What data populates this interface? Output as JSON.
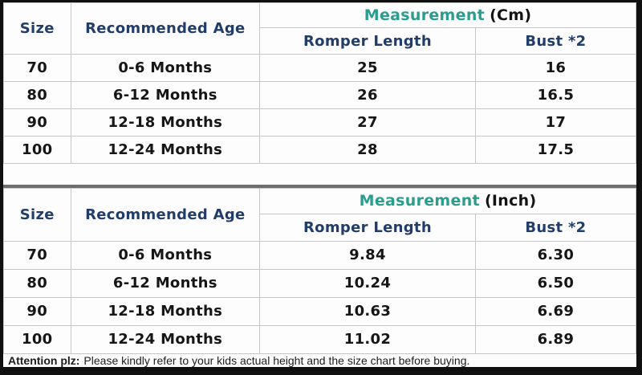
{
  "colors": {
    "header_blue": "#223d69",
    "measurement_teal": "#2a9d8f",
    "grid_gray": "#c6c6c6",
    "frame_black": "#101010"
  },
  "chart_data": [
    {
      "type": "table",
      "title": "Measurement (Cm)",
      "columns": [
        "Size",
        "Recommended Age",
        "Romper Length",
        "Bust *2"
      ],
      "header": {
        "size": "Size",
        "age": "Recommended Age",
        "measurement": "Measurement",
        "unit": "(Cm)",
        "length": "Romper Length",
        "bust": "Bust *2"
      },
      "rows": [
        {
          "size": "70",
          "age": "0-6 Months",
          "length": "25",
          "bust": "16"
        },
        {
          "size": "80",
          "age": "6-12 Months",
          "length": "26",
          "bust": "16.5"
        },
        {
          "size": "90",
          "age": "12-18 Months",
          "length": "27",
          "bust": "17"
        },
        {
          "size": "100",
          "age": "12-24 Months",
          "length": "28",
          "bust": "17.5"
        }
      ]
    },
    {
      "type": "table",
      "title": "Measurement (Inch)",
      "columns": [
        "Size",
        "Recommended Age",
        "Romper Length",
        "Bust *2"
      ],
      "header": {
        "size": "Size",
        "age": "Recommended Age",
        "measurement": "Measurement",
        "unit": "(Inch)",
        "length": "Romper Length",
        "bust": "Bust *2"
      },
      "rows": [
        {
          "size": "70",
          "age": "0-6 Months",
          "length": "9.84",
          "bust": "6.30"
        },
        {
          "size": "80",
          "age": "6-12 Months",
          "length": "10.24",
          "bust": "6.50"
        },
        {
          "size": "90",
          "age": "12-18 Months",
          "length": "10.63",
          "bust": "6.69"
        },
        {
          "size": "100",
          "age": "12-24 Months",
          "length": "11.02",
          "bust": "6.89"
        }
      ]
    }
  ],
  "note": {
    "label": "Attention plz:",
    "text": "Please kindly refer to your kids actual height and the size chart before buying."
  }
}
